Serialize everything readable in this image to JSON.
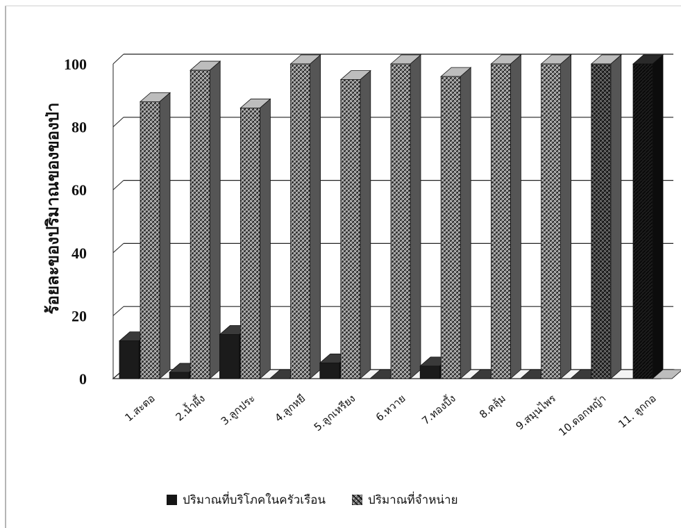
{
  "chart_data": {
    "type": "bar",
    "ylabel": "ร้อยละของปริมาณของของป่า",
    "xlabel": "",
    "ylim": [
      0,
      100
    ],
    "yticks": [
      0,
      20,
      40,
      60,
      80,
      100
    ],
    "grid": true,
    "legend_position": "bottom",
    "categories": [
      "1.สะตอ",
      "2.น้ำผึ้ง",
      "3.ลูกประ",
      "4.ลูกหยี",
      "5.ลูกเหรียง",
      "6.หวาย",
      "7.ทองบึ้ง",
      "8.คลุ้ม",
      "9.สมุนไพร",
      "10.ดอกหญ้า",
      "11. ลูกกอ"
    ],
    "series": [
      {
        "name": "ปริมาณที่บริโภคในครัวเรือน",
        "color": "#151515",
        "values": [
          12,
          2,
          14,
          0,
          5,
          0,
          4,
          0,
          0,
          0,
          100
        ]
      },
      {
        "name": "ปริมาณที่จำหน่าย",
        "color": "#5e5e5e",
        "values": [
          88,
          98,
          86,
          100,
          95,
          100,
          96,
          100,
          100,
          100,
          0
        ]
      }
    ]
  }
}
